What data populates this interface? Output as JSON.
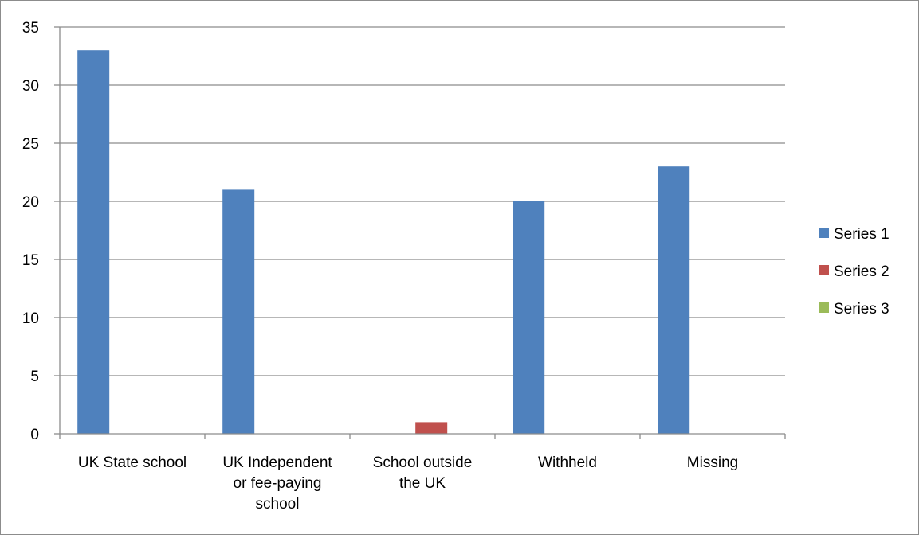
{
  "chart_data": {
    "type": "bar",
    "title": "",
    "xlabel": "",
    "ylabel": "",
    "categories": [
      [
        "UK State school"
      ],
      [
        "UK Independent",
        "or fee-paying",
        "school"
      ],
      [
        "School outside",
        "the UK"
      ],
      [
        "Withheld"
      ],
      [
        "Missing"
      ]
    ],
    "yticks": [
      "0",
      "5",
      "10",
      "15",
      "20",
      "25",
      "30",
      "35"
    ],
    "ylim": [
      0,
      35
    ],
    "grid": true,
    "legend_position": "right",
    "series": [
      {
        "name": "Series 1",
        "color": "#4f81bd",
        "values": [
          33,
          21,
          0,
          20,
          23
        ]
      },
      {
        "name": "Series 2",
        "color": "#c0504d",
        "values": [
          0,
          0,
          1,
          0,
          0
        ]
      },
      {
        "name": "Series 3",
        "color": "#9bbb59",
        "values": [
          0,
          0,
          0,
          0,
          0
        ]
      }
    ]
  }
}
